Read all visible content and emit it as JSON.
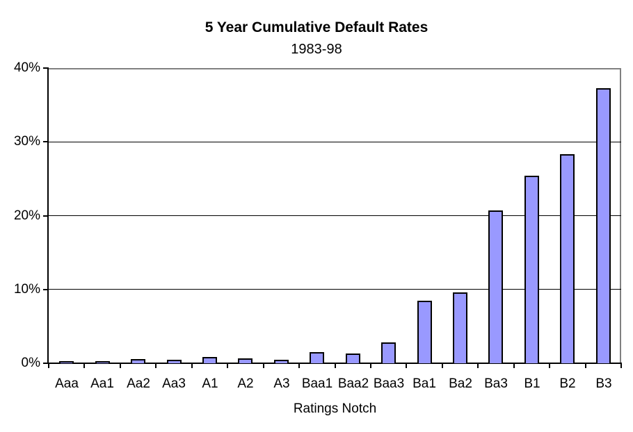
{
  "chart": {
    "title": "5 Year Cumulative Default Rates",
    "subtitle": "1983-98"
  },
  "chart_data": {
    "type": "bar",
    "title": "5 Year Cumulative Default Rates",
    "subtitle": "1983-98",
    "categories": [
      "Aaa",
      "Aa1",
      "Aa2",
      "Aa3",
      "A1",
      "A2",
      "A3",
      "Baa1",
      "Baa2",
      "Baa3",
      "Ba1",
      "Ba2",
      "Ba3",
      "B1",
      "B2",
      "B3"
    ],
    "values": [
      0.3,
      0.3,
      0.6,
      0.5,
      0.8,
      0.7,
      0.5,
      1.5,
      1.3,
      2.8,
      8.5,
      9.6,
      20.7,
      25.4,
      28.3,
      37.3
    ],
    "xlabel": "Ratings Notch",
    "ylabel": "",
    "ylim": [
      0,
      40
    ],
    "ytick_step": 10,
    "ytick_labels": [
      "0%",
      "10%",
      "20%",
      "30%",
      "40%"
    ],
    "grid": true,
    "legend": "none",
    "colors": {
      "bar_fill": "#9999FF",
      "bar_border": "#000000",
      "plot_border": "#808080",
      "axis": "#000000",
      "gridline": "#000000",
      "background": "#FFFFFF",
      "text": "#000000"
    }
  }
}
